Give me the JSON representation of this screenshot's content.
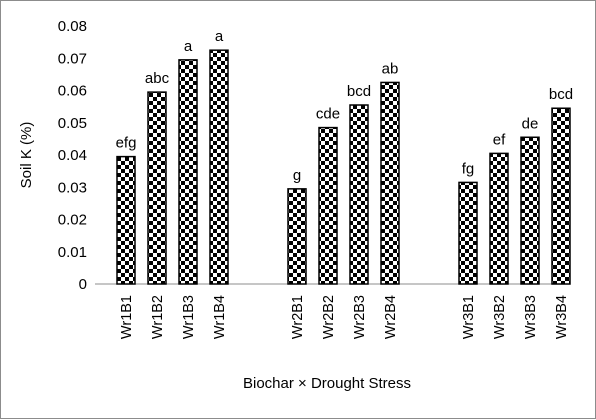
{
  "chart_data": {
    "type": "bar",
    "categories": [
      "Wr1B1",
      "Wr1B2",
      "Wr1B3",
      "Wr1B4",
      "Wr2B1",
      "Wr2B2",
      "Wr2B3",
      "Wr2B4",
      "Wr3B1",
      "Wr3B2",
      "Wr3B3",
      "Wr3B4"
    ],
    "values": [
      0.0395,
      0.0595,
      0.0695,
      0.0725,
      0.0295,
      0.0485,
      0.0555,
      0.0625,
      0.0315,
      0.0405,
      0.0455,
      0.0545
    ],
    "data_labels": [
      "efg",
      "abc",
      "a",
      "a",
      "g",
      "cde",
      "bcd",
      "ab",
      "fg",
      "ef",
      "de",
      "bcd"
    ],
    "groups": [
      [
        "Wr1B1",
        "Wr1B2",
        "Wr1B3",
        "Wr1B4"
      ],
      [
        "Wr2B1",
        "Wr2B2",
        "Wr2B3",
        "Wr2B4"
      ],
      [
        "Wr3B1",
        "Wr3B2",
        "Wr3B3",
        "Wr3B4"
      ]
    ],
    "xlabel": "Biochar × Drought Stress",
    "ylabel": "Soil K (%)",
    "ylim": [
      0,
      0.08
    ],
    "yticks": [
      "0",
      "0.01",
      "0.02",
      "0.03",
      "0.04",
      "0.05",
      "0.06",
      "0.07",
      "0.08"
    ],
    "bar_pattern": "black-white checkerboard",
    "bar_outline_color": "#000000",
    "grid": false,
    "legend": "none"
  }
}
